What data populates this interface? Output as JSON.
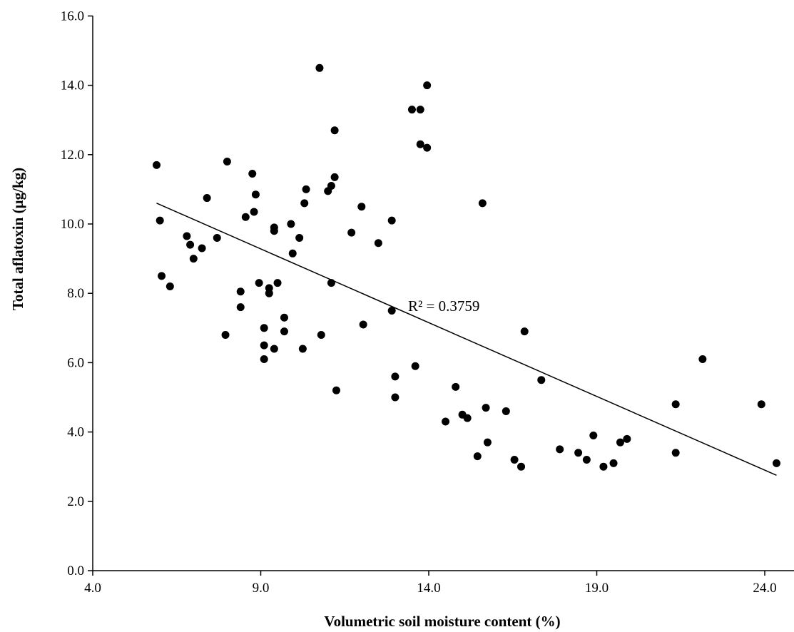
{
  "chart_data": {
    "type": "scatter",
    "xlabel": "Volumetric soil moisture content (%)",
    "ylabel": "Total aflatoxin (µg/kg)",
    "xlim": [
      4.0,
      24.5
    ],
    "ylim": [
      0.0,
      16.0
    ],
    "xticks": [
      4.0,
      9.0,
      14.0,
      19.0,
      24.0
    ],
    "yticks": [
      0.0,
      2.0,
      4.0,
      6.0,
      8.0,
      10.0,
      12.0,
      14.0,
      16.0
    ],
    "xtick_labels": [
      "4.0",
      "9.0",
      "14.0",
      "19.0",
      "24.0"
    ],
    "ytick_labels": [
      "0.0",
      "2.0",
      "4.0",
      "6.0",
      "8.0",
      "10.0",
      "12.0",
      "14.0",
      "16.0"
    ],
    "grid": false,
    "points": [
      [
        5.9,
        11.7
      ],
      [
        6.0,
        10.1
      ],
      [
        6.05,
        8.5
      ],
      [
        6.3,
        8.2
      ],
      [
        6.8,
        9.65
      ],
      [
        6.9,
        9.4
      ],
      [
        7.0,
        9.0
      ],
      [
        7.25,
        9.3
      ],
      [
        7.4,
        10.75
      ],
      [
        7.7,
        9.6
      ],
      [
        7.95,
        6.8
      ],
      [
        8.0,
        11.8
      ],
      [
        8.4,
        8.05
      ],
      [
        8.4,
        7.6
      ],
      [
        8.55,
        10.2
      ],
      [
        8.75,
        11.45
      ],
      [
        8.8,
        10.35
      ],
      [
        8.85,
        10.85
      ],
      [
        8.95,
        8.3
      ],
      [
        9.1,
        7.0
      ],
      [
        9.1,
        6.5
      ],
      [
        9.1,
        6.1
      ],
      [
        9.25,
        8.15
      ],
      [
        9.25,
        8.0
      ],
      [
        9.4,
        9.9
      ],
      [
        9.4,
        9.8
      ],
      [
        9.4,
        6.4
      ],
      [
        9.5,
        8.3
      ],
      [
        9.7,
        7.3
      ],
      [
        9.7,
        6.9
      ],
      [
        9.9,
        10.0
      ],
      [
        9.95,
        9.15
      ],
      [
        10.15,
        9.6
      ],
      [
        10.25,
        6.4
      ],
      [
        10.3,
        10.6
      ],
      [
        10.35,
        11.0
      ],
      [
        10.75,
        14.5
      ],
      [
        10.8,
        6.8
      ],
      [
        11.0,
        10.95
      ],
      [
        11.1,
        11.1
      ],
      [
        11.1,
        8.3
      ],
      [
        11.2,
        11.35
      ],
      [
        11.2,
        12.7
      ],
      [
        11.25,
        5.2
      ],
      [
        11.7,
        9.75
      ],
      [
        12.0,
        10.5
      ],
      [
        12.05,
        7.1
      ],
      [
        12.5,
        9.45
      ],
      [
        12.9,
        10.1
      ],
      [
        12.9,
        7.5
      ],
      [
        13.0,
        5.6
      ],
      [
        13.0,
        5.0
      ],
      [
        13.5,
        13.3
      ],
      [
        13.6,
        5.9
      ],
      [
        13.75,
        13.3
      ],
      [
        13.75,
        12.3
      ],
      [
        13.95,
        14.0
      ],
      [
        13.95,
        12.2
      ],
      [
        14.5,
        4.3
      ],
      [
        14.8,
        5.3
      ],
      [
        15.0,
        4.5
      ],
      [
        15.15,
        4.4
      ],
      [
        15.45,
        3.3
      ],
      [
        15.6,
        10.6
      ],
      [
        15.7,
        4.7
      ],
      [
        15.75,
        3.7
      ],
      [
        16.3,
        4.6
      ],
      [
        16.55,
        3.2
      ],
      [
        16.75,
        3.0
      ],
      [
        16.85,
        6.9
      ],
      [
        17.35,
        5.5
      ],
      [
        17.9,
        3.5
      ],
      [
        18.45,
        3.4
      ],
      [
        18.7,
        3.2
      ],
      [
        18.9,
        3.9
      ],
      [
        19.2,
        3.0
      ],
      [
        19.5,
        3.1
      ],
      [
        19.7,
        3.7
      ],
      [
        19.9,
        3.8
      ],
      [
        21.35,
        4.8
      ],
      [
        21.35,
        3.4
      ],
      [
        22.15,
        6.1
      ],
      [
        23.9,
        4.8
      ],
      [
        24.35,
        3.1
      ]
    ],
    "trendline": {
      "x": [
        5.9,
        24.35
      ],
      "y": [
        10.6,
        2.75
      ]
    },
    "annotation": "R² = 0.3759",
    "colors": {
      "point": "#000000",
      "line": "#000000",
      "axis": "#000000"
    }
  }
}
